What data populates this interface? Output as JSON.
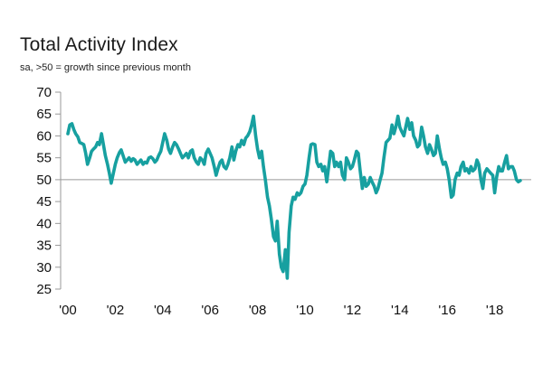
{
  "chart_data": {
    "type": "line",
    "title": "Total Activity Index",
    "subtitle": "sa, >50 = growth since previous month",
    "xlabel": "",
    "ylabel": "",
    "ylim": [
      25,
      70
    ],
    "xlim": [
      2000,
      2019.5
    ],
    "reference_line": 50,
    "colors": {
      "line": "#17A0A0",
      "axis": "#999999",
      "reference": "#999999"
    },
    "yticks": [
      {
        "value": 25,
        "label": "25"
      },
      {
        "value": 30,
        "label": "30"
      },
      {
        "value": 35,
        "label": "35"
      },
      {
        "value": 40,
        "label": "40"
      },
      {
        "value": 45,
        "label": "45"
      },
      {
        "value": 50,
        "label": "50"
      },
      {
        "value": 55,
        "label": "55"
      },
      {
        "value": 60,
        "label": "60"
      },
      {
        "value": 65,
        "label": "65"
      },
      {
        "value": 70,
        "label": "70"
      }
    ],
    "xticks": [
      {
        "value": 2000,
        "label": "'00"
      },
      {
        "value": 2002,
        "label": "'02"
      },
      {
        "value": 2004,
        "label": "'04"
      },
      {
        "value": 2006,
        "label": "'06"
      },
      {
        "value": 2008,
        "label": "'08"
      },
      {
        "value": 2010,
        "label": "'10"
      },
      {
        "value": 2012,
        "label": "'12"
      },
      {
        "value": 2014,
        "label": "'14"
      },
      {
        "value": 2016,
        "label": "'16"
      },
      {
        "value": 2018,
        "label": "'18"
      }
    ],
    "series": [
      {
        "name": "Total Activity Index",
        "points": [
          [
            2000.0,
            60.5
          ],
          [
            2000.08,
            62.5
          ],
          [
            2000.17,
            62.8
          ],
          [
            2000.25,
            61.5
          ],
          [
            2000.33,
            60.5
          ],
          [
            2000.42,
            59.8
          ],
          [
            2000.5,
            58.5
          ],
          [
            2000.58,
            58.3
          ],
          [
            2000.67,
            58.0
          ],
          [
            2000.75,
            56.0
          ],
          [
            2000.83,
            53.5
          ],
          [
            2000.92,
            55.0
          ],
          [
            2001.0,
            56.5
          ],
          [
            2001.08,
            57.0
          ],
          [
            2001.17,
            57.5
          ],
          [
            2001.25,
            58.5
          ],
          [
            2001.33,
            58.0
          ],
          [
            2001.42,
            60.5
          ],
          [
            2001.5,
            58.0
          ],
          [
            2001.58,
            55.5
          ],
          [
            2001.67,
            53.5
          ],
          [
            2001.75,
            51.5
          ],
          [
            2001.83,
            49.2
          ],
          [
            2001.92,
            51.5
          ],
          [
            2002.0,
            53.5
          ],
          [
            2002.08,
            55.0
          ],
          [
            2002.17,
            56.2
          ],
          [
            2002.25,
            56.8
          ],
          [
            2002.33,
            55.5
          ],
          [
            2002.42,
            54.0
          ],
          [
            2002.5,
            54.5
          ],
          [
            2002.58,
            55.0
          ],
          [
            2002.67,
            54.2
          ],
          [
            2002.75,
            54.8
          ],
          [
            2002.83,
            54.5
          ],
          [
            2002.92,
            53.5
          ],
          [
            2003.0,
            54.0
          ],
          [
            2003.08,
            54.5
          ],
          [
            2003.17,
            53.5
          ],
          [
            2003.25,
            54.0
          ],
          [
            2003.33,
            53.8
          ],
          [
            2003.42,
            55.0
          ],
          [
            2003.5,
            55.2
          ],
          [
            2003.58,
            54.8
          ],
          [
            2003.67,
            54.0
          ],
          [
            2003.75,
            54.5
          ],
          [
            2003.83,
            55.5
          ],
          [
            2003.92,
            56.5
          ],
          [
            2004.0,
            58.5
          ],
          [
            2004.08,
            60.5
          ],
          [
            2004.17,
            59.0
          ],
          [
            2004.25,
            57.0
          ],
          [
            2004.33,
            56.0
          ],
          [
            2004.42,
            57.5
          ],
          [
            2004.5,
            58.5
          ],
          [
            2004.58,
            58.0
          ],
          [
            2004.67,
            57.0
          ],
          [
            2004.75,
            56.0
          ],
          [
            2004.83,
            55.0
          ],
          [
            2004.92,
            55.5
          ],
          [
            2005.0,
            56.0
          ],
          [
            2005.08,
            55.0
          ],
          [
            2005.17,
            56.5
          ],
          [
            2005.25,
            56.8
          ],
          [
            2005.33,
            55.0
          ],
          [
            2005.42,
            54.0
          ],
          [
            2005.5,
            53.5
          ],
          [
            2005.58,
            55.0
          ],
          [
            2005.67,
            54.5
          ],
          [
            2005.75,
            53.5
          ],
          [
            2005.83,
            56.0
          ],
          [
            2005.92,
            57.0
          ],
          [
            2006.0,
            56.0
          ],
          [
            2006.08,
            55.0
          ],
          [
            2006.17,
            53.0
          ],
          [
            2006.25,
            51.0
          ],
          [
            2006.33,
            52.5
          ],
          [
            2006.42,
            54.0
          ],
          [
            2006.5,
            54.5
          ],
          [
            2006.58,
            53.0
          ],
          [
            2006.67,
            52.5
          ],
          [
            2006.75,
            53.5
          ],
          [
            2006.83,
            55.0
          ],
          [
            2006.92,
            57.5
          ],
          [
            2007.0,
            54.5
          ],
          [
            2007.08,
            56.5
          ],
          [
            2007.17,
            58.0
          ],
          [
            2007.25,
            57.5
          ],
          [
            2007.33,
            59.0
          ],
          [
            2007.42,
            58.0
          ],
          [
            2007.5,
            59.5
          ],
          [
            2007.58,
            60.0
          ],
          [
            2007.67,
            61.0
          ],
          [
            2007.75,
            62.5
          ],
          [
            2007.83,
            64.5
          ],
          [
            2007.92,
            60.0
          ],
          [
            2008.0,
            57.0
          ],
          [
            2008.08,
            55.0
          ],
          [
            2008.17,
            56.5
          ],
          [
            2008.25,
            53.0
          ],
          [
            2008.33,
            50.0
          ],
          [
            2008.42,
            46.0
          ],
          [
            2008.5,
            44.0
          ],
          [
            2008.58,
            41.0
          ],
          [
            2008.67,
            37.0
          ],
          [
            2008.75,
            36.0
          ],
          [
            2008.83,
            40.5
          ],
          [
            2008.92,
            33.0
          ],
          [
            2009.0,
            30.0
          ],
          [
            2009.08,
            29.0
          ],
          [
            2009.17,
            34.0
          ],
          [
            2009.25,
            27.5
          ],
          [
            2009.33,
            38.0
          ],
          [
            2009.42,
            44.0
          ],
          [
            2009.5,
            46.0
          ],
          [
            2009.58,
            45.5
          ],
          [
            2009.67,
            47.0
          ],
          [
            2009.75,
            46.5
          ],
          [
            2009.83,
            47.0
          ],
          [
            2009.92,
            48.5
          ],
          [
            2010.0,
            49.0
          ],
          [
            2010.08,
            51.0
          ],
          [
            2010.17,
            55.0
          ],
          [
            2010.25,
            58.0
          ],
          [
            2010.33,
            58.2
          ],
          [
            2010.42,
            58.0
          ],
          [
            2010.5,
            54.0
          ],
          [
            2010.58,
            53.0
          ],
          [
            2010.67,
            53.5
          ],
          [
            2010.75,
            52.0
          ],
          [
            2010.83,
            53.0
          ],
          [
            2010.92,
            49.5
          ],
          [
            2011.0,
            53.0
          ],
          [
            2011.08,
            56.5
          ],
          [
            2011.17,
            56.0
          ],
          [
            2011.25,
            53.0
          ],
          [
            2011.33,
            54.0
          ],
          [
            2011.42,
            53.0
          ],
          [
            2011.5,
            54.0
          ],
          [
            2011.58,
            51.0
          ],
          [
            2011.67,
            50.0
          ],
          [
            2011.75,
            55.0
          ],
          [
            2011.83,
            54.0
          ],
          [
            2011.92,
            52.5
          ],
          [
            2012.0,
            53.0
          ],
          [
            2012.08,
            54.5
          ],
          [
            2012.17,
            56.5
          ],
          [
            2012.25,
            56.0
          ],
          [
            2012.33,
            52.0
          ],
          [
            2012.42,
            48.0
          ],
          [
            2012.5,
            50.5
          ],
          [
            2012.58,
            48.5
          ],
          [
            2012.67,
            49.0
          ],
          [
            2012.75,
            50.5
          ],
          [
            2012.83,
            49.5
          ],
          [
            2012.92,
            48.5
          ],
          [
            2013.0,
            47.0
          ],
          [
            2013.08,
            48.0
          ],
          [
            2013.17,
            50.0
          ],
          [
            2013.25,
            51.5
          ],
          [
            2013.33,
            55.0
          ],
          [
            2013.42,
            58.5
          ],
          [
            2013.5,
            59.0
          ],
          [
            2013.58,
            59.5
          ],
          [
            2013.67,
            62.5
          ],
          [
            2013.75,
            60.5
          ],
          [
            2013.83,
            62.0
          ],
          [
            2013.92,
            64.5
          ],
          [
            2014.0,
            62.0
          ],
          [
            2014.08,
            61.0
          ],
          [
            2014.17,
            60.0
          ],
          [
            2014.25,
            62.0
          ],
          [
            2014.33,
            64.0
          ],
          [
            2014.42,
            61.5
          ],
          [
            2014.5,
            63.0
          ],
          [
            2014.58,
            60.0
          ],
          [
            2014.67,
            59.0
          ],
          [
            2014.75,
            57.5
          ],
          [
            2014.83,
            58.0
          ],
          [
            2014.92,
            62.0
          ],
          [
            2015.0,
            60.0
          ],
          [
            2015.08,
            57.5
          ],
          [
            2015.17,
            56.0
          ],
          [
            2015.25,
            58.0
          ],
          [
            2015.33,
            57.0
          ],
          [
            2015.42,
            55.5
          ],
          [
            2015.5,
            56.0
          ],
          [
            2015.58,
            60.0
          ],
          [
            2015.67,
            57.0
          ],
          [
            2015.75,
            55.0
          ],
          [
            2015.83,
            53.5
          ],
          [
            2015.92,
            54.0
          ],
          [
            2016.0,
            52.5
          ],
          [
            2016.08,
            50.0
          ],
          [
            2016.17,
            46.0
          ],
          [
            2016.25,
            46.5
          ],
          [
            2016.33,
            50.0
          ],
          [
            2016.42,
            51.5
          ],
          [
            2016.5,
            51.0
          ],
          [
            2016.58,
            53.0
          ],
          [
            2016.67,
            54.0
          ],
          [
            2016.75,
            52.0
          ],
          [
            2016.83,
            52.5
          ],
          [
            2016.92,
            51.5
          ],
          [
            2017.0,
            53.0
          ],
          [
            2017.08,
            52.0
          ],
          [
            2017.17,
            52.5
          ],
          [
            2017.25,
            54.5
          ],
          [
            2017.33,
            53.5
          ],
          [
            2017.42,
            50.0
          ],
          [
            2017.5,
            48.0
          ],
          [
            2017.58,
            51.5
          ],
          [
            2017.67,
            52.5
          ],
          [
            2017.75,
            52.0
          ],
          [
            2017.83,
            51.5
          ],
          [
            2017.92,
            51.0
          ],
          [
            2018.0,
            47.0
          ],
          [
            2018.08,
            50.5
          ],
          [
            2018.17,
            53.0
          ],
          [
            2018.25,
            52.0
          ],
          [
            2018.33,
            52.0
          ],
          [
            2018.42,
            54.0
          ],
          [
            2018.5,
            55.5
          ],
          [
            2018.58,
            52.5
          ],
          [
            2018.67,
            53.0
          ],
          [
            2018.75,
            53.0
          ],
          [
            2018.83,
            52.0
          ],
          [
            2018.92,
            50.0
          ],
          [
            2019.0,
            49.5
          ],
          [
            2019.08,
            49.8
          ]
        ]
      }
    ]
  }
}
